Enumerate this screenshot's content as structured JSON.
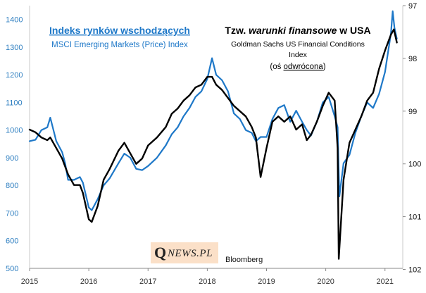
{
  "chart_data": {
    "type": "line",
    "left_axis": {
      "ylim": [
        500,
        1450
      ],
      "ticks": [
        500,
        600,
        700,
        800,
        900,
        1000,
        1100,
        1200,
        1300,
        1400
      ]
    },
    "right_axis": {
      "ylim": [
        101.98,
        97.0
      ],
      "inverted": true,
      "ticks": [
        97,
        98,
        99,
        100,
        101,
        102
      ],
      "tick_labels": [
        "97",
        "98",
        "99",
        "100",
        "101",
        "102"
      ]
    },
    "x_axis": {
      "xlim": [
        2015.0,
        2021.3
      ],
      "ticks": [
        2015,
        2016,
        2017,
        2018,
        2019,
        2020,
        2021
      ],
      "tick_labels": [
        "2015",
        "2016",
        "2017",
        "2018",
        "2019",
        "2020",
        "2021"
      ]
    },
    "series": [
      {
        "name": "MSCI Emerging Markets (Price) Index",
        "axis": "left",
        "color": "#1e78c8",
        "x": [
          2015.0,
          2015.1,
          2015.2,
          2015.3,
          2015.35,
          2015.45,
          2015.55,
          2015.6,
          2015.65,
          2015.75,
          2015.85,
          2015.9,
          2016.0,
          2016.05,
          2016.15,
          2016.25,
          2016.35,
          2016.5,
          2016.6,
          2016.7,
          2016.8,
          2016.9,
          2017.0,
          2017.15,
          2017.3,
          2017.4,
          2017.5,
          2017.6,
          2017.7,
          2017.8,
          2017.9,
          2018.0,
          2018.08,
          2018.15,
          2018.25,
          2018.35,
          2018.45,
          2018.55,
          2018.65,
          2018.75,
          2018.82,
          2018.9,
          2019.0,
          2019.1,
          2019.2,
          2019.3,
          2019.4,
          2019.5,
          2019.6,
          2019.68,
          2019.75,
          2019.85,
          2019.95,
          2020.05,
          2020.15,
          2020.2,
          2020.23,
          2020.3,
          2020.4,
          2020.5,
          2020.6,
          2020.7,
          2020.8,
          2020.9,
          2021.0,
          2021.05,
          2021.1,
          2021.13,
          2021.16,
          2021.2
        ],
        "values": [
          960,
          965,
          1000,
          1010,
          1045,
          960,
          920,
          880,
          820,
          820,
          830,
          810,
          720,
          710,
          750,
          800,
          825,
          880,
          915,
          900,
          860,
          855,
          870,
          900,
          945,
          985,
          1010,
          1050,
          1080,
          1120,
          1140,
          1185,
          1260,
          1200,
          1180,
          1140,
          1060,
          1040,
          1000,
          990,
          960,
          975,
          975,
          1040,
          1080,
          1090,
          1030,
          1070,
          1030,
          1000,
          980,
          1030,
          1100,
          1120,
          1050,
          1010,
          760,
          880,
          910,
          990,
          1050,
          1100,
          1080,
          1130,
          1210,
          1280,
          1350,
          1430,
          1370,
          1330
        ]
      },
      {
        "name": "Goldman Sachs US Financial Conditions Index",
        "axis": "right",
        "color": "#000000",
        "x": [
          2015.0,
          2015.1,
          2015.2,
          2015.3,
          2015.35,
          2015.45,
          2015.55,
          2015.65,
          2015.75,
          2015.85,
          2015.9,
          2016.0,
          2016.05,
          2016.15,
          2016.25,
          2016.35,
          2016.5,
          2016.6,
          2016.7,
          2016.8,
          2016.9,
          2017.0,
          2017.15,
          2017.3,
          2017.4,
          2017.5,
          2017.6,
          2017.7,
          2017.8,
          2017.9,
          2018.0,
          2018.08,
          2018.15,
          2018.25,
          2018.35,
          2018.45,
          2018.55,
          2018.65,
          2018.75,
          2018.82,
          2018.9,
          2019.0,
          2019.1,
          2019.2,
          2019.3,
          2019.4,
          2019.5,
          2019.6,
          2019.68,
          2019.75,
          2019.85,
          2019.95,
          2020.05,
          2020.15,
          2020.2,
          2020.22,
          2020.3,
          2020.4,
          2020.5,
          2020.6,
          2020.7,
          2020.8,
          2020.9,
          2021.0,
          2021.05,
          2021.1,
          2021.15,
          2021.2
        ],
        "values": [
          99.35,
          99.4,
          99.5,
          99.55,
          99.5,
          99.7,
          99.9,
          100.2,
          100.4,
          100.4,
          100.55,
          101.05,
          101.1,
          100.8,
          100.3,
          100.1,
          99.75,
          99.6,
          99.8,
          100.0,
          99.9,
          99.65,
          99.5,
          99.3,
          99.05,
          98.95,
          98.8,
          98.7,
          98.55,
          98.5,
          98.35,
          98.35,
          98.5,
          98.6,
          98.75,
          98.9,
          99.0,
          99.1,
          99.3,
          99.5,
          100.25,
          99.7,
          99.2,
          99.1,
          99.2,
          99.1,
          99.35,
          99.25,
          99.55,
          99.45,
          99.2,
          98.9,
          98.65,
          98.8,
          99.7,
          101.8,
          100.3,
          99.6,
          99.35,
          99.1,
          98.8,
          98.65,
          98.2,
          97.85,
          97.7,
          97.55,
          97.45,
          97.7
        ]
      }
    ],
    "legend": {
      "blue_title": "Indeks rynków wschodzących",
      "blue_subtitle": "MSCI Emerging Markets (Price) Index",
      "black_title_prefix": "Tzw. ",
      "black_title_italic": "warunki finansowe",
      "black_title_suffix": " w USA",
      "black_subtitle_line1": "Goldman Sachs US Financial Conditions",
      "black_subtitle_line2": "Index",
      "black_note_prefix": "(oś ",
      "black_note_underlined": "odwrócona",
      "black_note_suffix": ")"
    },
    "source": "Bloomberg"
  },
  "logo": {
    "q": "Q",
    "rest": "NEWS.PL"
  },
  "colors": {
    "blue": "#1e78c8",
    "black": "#000000",
    "axis": "#888888",
    "logo_bg": "#fbe0c8"
  }
}
